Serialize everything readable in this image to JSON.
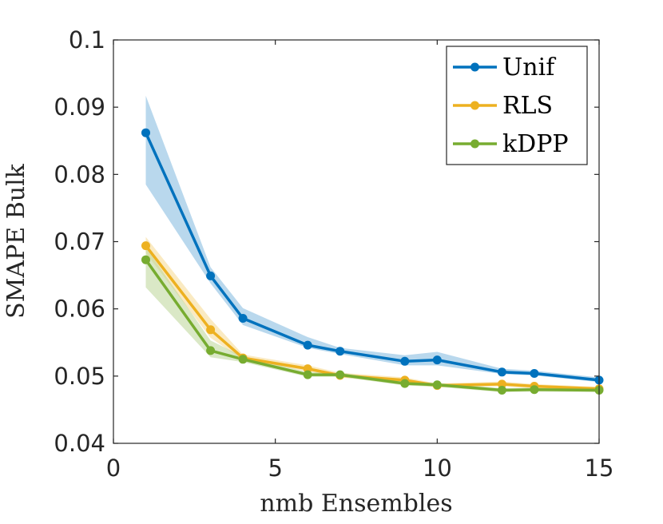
{
  "chart_data": {
    "type": "line",
    "xlabel": "nmb Ensembles",
    "ylabel": "SMAPE Bulk",
    "xlim": [
      0,
      15
    ],
    "ylim": [
      0.04,
      0.1
    ],
    "xticks": [
      0,
      5,
      10,
      15
    ],
    "yticks": [
      0.04,
      0.05,
      0.06,
      0.07,
      0.08,
      0.09,
      0.1
    ],
    "xtick_labels": [
      "0",
      "5",
      "10",
      "15"
    ],
    "ytick_labels": [
      "0.04",
      "0.05",
      "0.06",
      "0.07",
      "0.08",
      "0.09",
      "0.1"
    ],
    "grid": false,
    "legend_position": "top-right",
    "x": [
      1,
      3,
      4,
      6,
      7,
      9,
      10,
      12,
      13,
      15
    ],
    "series": [
      {
        "name": "Unif",
        "color": "#0072BD",
        "band_color": "#7fb8de",
        "values": [
          0.0862,
          0.0649,
          0.0586,
          0.0546,
          0.0537,
          0.0522,
          0.0524,
          0.0506,
          0.0504,
          0.0494
        ],
        "lower": [
          0.0785,
          0.0638,
          0.0576,
          0.0542,
          0.0533,
          0.0516,
          0.0516,
          0.0503,
          0.0501,
          0.0491
        ],
        "upper": [
          0.0917,
          0.0662,
          0.0601,
          0.0558,
          0.0542,
          0.0531,
          0.0536,
          0.0511,
          0.0508,
          0.0498
        ]
      },
      {
        "name": "RLS",
        "color": "#EDB120",
        "band_color": "#f6d88f",
        "values": [
          0.0694,
          0.0569,
          0.0527,
          0.0511,
          0.0501,
          0.0494,
          0.0486,
          0.0488,
          0.0485,
          0.0481
        ],
        "lower": [
          0.0683,
          0.0557,
          0.0524,
          0.0507,
          0.0498,
          0.0489,
          0.0483,
          0.0485,
          0.0482,
          0.0479
        ],
        "upper": [
          0.0707,
          0.0585,
          0.0532,
          0.0516,
          0.0505,
          0.0498,
          0.0489,
          0.0492,
          0.0488,
          0.0484
        ]
      },
      {
        "name": "kDPP",
        "color": "#77AC30",
        "band_color": "#bbd597",
        "values": [
          0.0673,
          0.0538,
          0.0525,
          0.0502,
          0.0502,
          0.0489,
          0.0487,
          0.0479,
          0.048,
          0.0479
        ],
        "lower": [
          0.0632,
          0.0528,
          0.0521,
          0.0499,
          0.0499,
          0.0486,
          0.0484,
          0.0476,
          0.0477,
          0.0476
        ],
        "upper": [
          0.0692,
          0.0553,
          0.0529,
          0.0506,
          0.0505,
          0.0492,
          0.049,
          0.0482,
          0.0483,
          0.0482
        ]
      }
    ]
  }
}
